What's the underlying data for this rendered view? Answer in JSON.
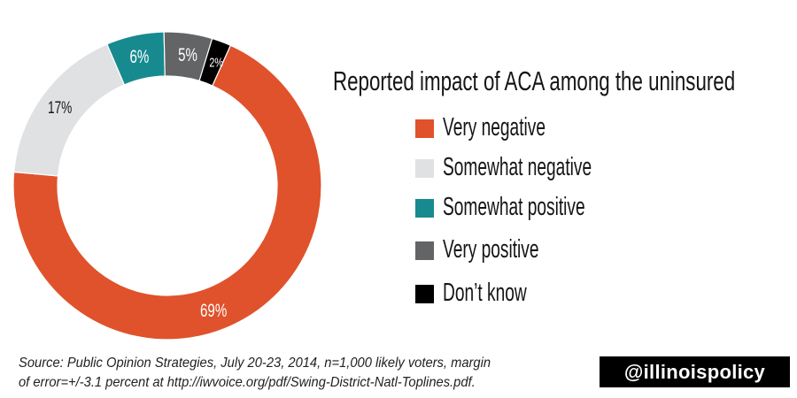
{
  "chart_data": {
    "type": "pie",
    "variant": "donut",
    "title": "Reported impact of ACA among the uninsured",
    "categories": [
      "Very negative",
      "Somewhat negative",
      "Somewhat positive",
      "Very positive",
      "Don’t know"
    ],
    "values": [
      69,
      17,
      6,
      5,
      2
    ],
    "data_labels": [
      "69%",
      "17%",
      "6%",
      "5%",
      "2%"
    ],
    "colors": [
      "#E0522B",
      "#E0E1E3",
      "#178A8F",
      "#636466",
      "#000000"
    ],
    "label_colors": [
      "#FFFFFF",
      "#1A1A1A",
      "#FFFFFF",
      "#FFFFFF",
      "#FFFFFF"
    ],
    "legend_position": "right",
    "unit": "percent"
  },
  "legend": {
    "items": [
      {
        "label": "Very negative",
        "color": "#E0522B"
      },
      {
        "label": "Somewhat negative",
        "color": "#E0E1E3"
      },
      {
        "label": "Somewhat positive",
        "color": "#178A8F"
      },
      {
        "label": "Very positive",
        "color": "#636466"
      },
      {
        "label": "Don’t know",
        "color": "#000000"
      }
    ]
  },
  "footer": {
    "source_line1": "Source: Public Opinion Strategies, July 20-23, 2014, n=1,000 likely voters, margin",
    "source_line2": "of error=+/-3.1 percent at http://iwvoice.org/pdf/Swing-District-Natl-Toplines.pdf.",
    "badge": "@illinoispolicy"
  }
}
